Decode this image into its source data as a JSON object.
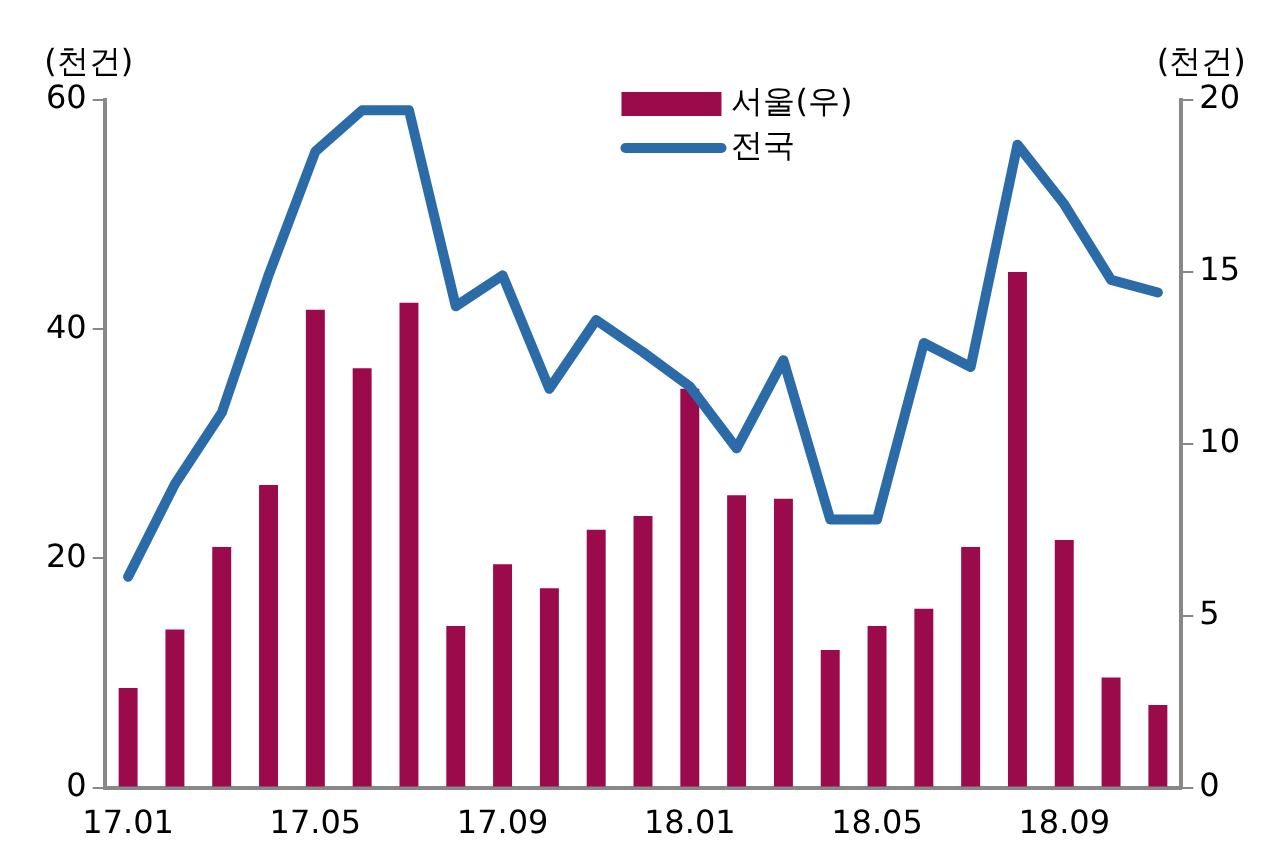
{
  "chart_data": {
    "type": "bar",
    "ylabel": "(천건)",
    "y2label": "(천건)",
    "categories": [
      "17.01",
      null,
      null,
      null,
      "17.05",
      null,
      null,
      null,
      "17.09",
      null,
      null,
      null,
      "18.01",
      null,
      null,
      null,
      "18.05",
      null,
      null,
      null,
      "18.09",
      null,
      null
    ],
    "series": [
      {
        "name": "서울(우)",
        "axis": "y2",
        "color": "#9b0a4b",
        "values": [
          2.9,
          4.6,
          7.0,
          8.8,
          13.9,
          12.2,
          14.1,
          4.7,
          6.5,
          5.8,
          7.5,
          7.9,
          11.6,
          8.5,
          8.4,
          4.0,
          4.7,
          5.2,
          7.0,
          15.0,
          7.2,
          3.2,
          2.4
        ]
      },
      {
        "name": "전국",
        "type": "line",
        "axis": "y",
        "color": "#2a6ba8",
        "values": [
          18.4,
          26.5,
          32.7,
          44.7,
          55.5,
          59.1,
          59.1,
          42.0,
          44.7,
          34.8,
          40.8,
          38.0,
          35.0,
          29.6,
          37.3,
          23.4,
          23.4,
          38.8,
          36.7,
          56.1,
          50.9,
          44.3,
          43.2
        ]
      }
    ],
    "ylim": [
      0,
      60
    ],
    "yticks": [
      0,
      20,
      40,
      60
    ],
    "y2lim": [
      0,
      20
    ],
    "y2ticks": [
      0,
      5,
      10,
      15,
      20
    ],
    "grid": false,
    "legend": "top",
    "marker": "none"
  }
}
